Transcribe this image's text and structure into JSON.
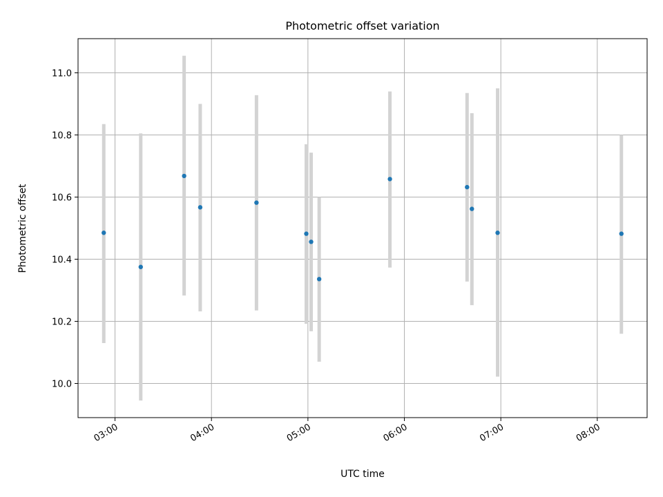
{
  "chart_data": {
    "type": "scatter",
    "title": "Photometric offset variation",
    "xlabel": "UTC time",
    "ylabel": "Photometric offset",
    "x_unit": "UTC time (HH:MM)",
    "xlim": [
      "02:37",
      "08:31"
    ],
    "ylim": [
      9.89,
      11.11
    ],
    "x_ticks": [
      "03:00",
      "04:00",
      "05:00",
      "06:00",
      "07:00",
      "08:00"
    ],
    "y_ticks": [
      10.0,
      10.2,
      10.4,
      10.6,
      10.8,
      11.0
    ],
    "y_tick_labels": [
      "10.0",
      "10.2",
      "10.4",
      "10.6",
      "10.8",
      "11.0"
    ],
    "grid": true,
    "legend": "none",
    "point_color": "#1f77b4",
    "errorbar_color": "#d3d3d3",
    "points": [
      {
        "x": "02:53",
        "y": 10.485,
        "yerr_low": 10.13,
        "yerr_high": 10.835
      },
      {
        "x": "03:16",
        "y": 10.375,
        "yerr_low": 9.945,
        "yerr_high": 10.805
      },
      {
        "x": "03:43",
        "y": 10.668,
        "yerr_low": 10.283,
        "yerr_high": 11.055
      },
      {
        "x": "03:53",
        "y": 10.567,
        "yerr_low": 10.232,
        "yerr_high": 10.9
      },
      {
        "x": "04:28",
        "y": 10.582,
        "yerr_low": 10.235,
        "yerr_high": 10.928
      },
      {
        "x": "04:59",
        "y": 10.482,
        "yerr_low": 10.192,
        "yerr_high": 10.77
      },
      {
        "x": "05:02",
        "y": 10.456,
        "yerr_low": 10.168,
        "yerr_high": 10.743
      },
      {
        "x": "05:07",
        "y": 10.336,
        "yerr_low": 10.07,
        "yerr_high": 10.6
      },
      {
        "x": "05:51",
        "y": 10.658,
        "yerr_low": 10.373,
        "yerr_high": 10.94
      },
      {
        "x": "06:39",
        "y": 10.632,
        "yerr_low": 10.328,
        "yerr_high": 10.935
      },
      {
        "x": "06:42",
        "y": 10.562,
        "yerr_low": 10.252,
        "yerr_high": 10.87
      },
      {
        "x": "06:58",
        "y": 10.485,
        "yerr_low": 10.022,
        "yerr_high": 10.95
      },
      {
        "x": "08:15",
        "y": 10.482,
        "yerr_low": 10.16,
        "yerr_high": 10.8
      }
    ]
  }
}
